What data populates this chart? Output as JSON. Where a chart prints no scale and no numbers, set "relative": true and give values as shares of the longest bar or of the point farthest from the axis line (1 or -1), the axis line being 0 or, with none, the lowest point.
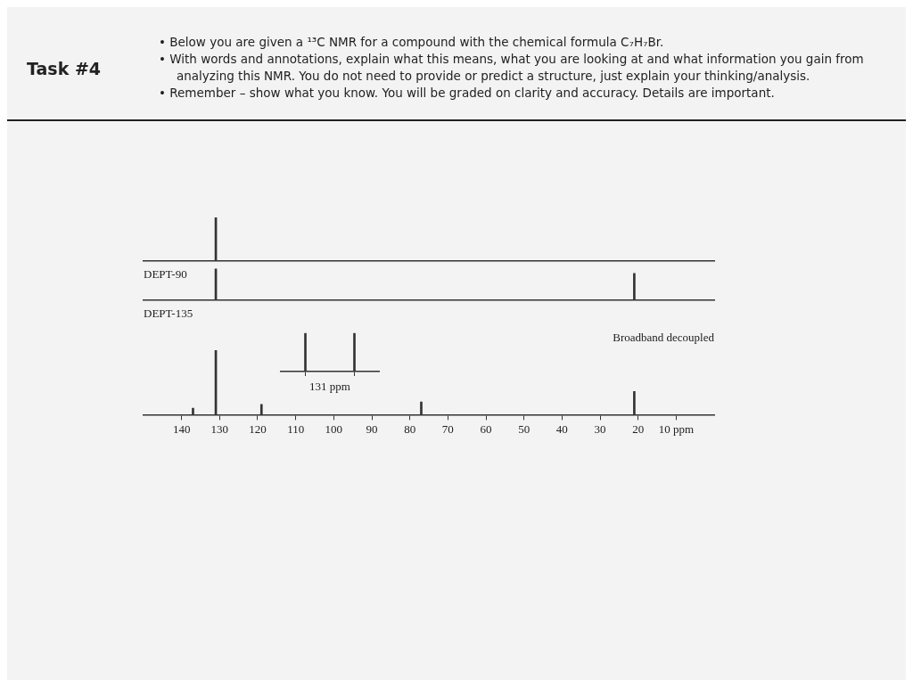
{
  "chart_data": [
    {
      "type": "bar",
      "title": "DEPT-90",
      "x": [
        131
      ],
      "values": [
        1
      ],
      "relative": true,
      "xlim": [
        150,
        0
      ],
      "tick_labels": false,
      "grid": false,
      "color": "#333333",
      "annotations": [
        "Task #4",
        "• Below you are given a ¹³C NMR for a compound with the chemical formula C₇H₇Br.",
        "• With words and annotations, explain what this means, what you are looking at and what information you gain from analyzing this NMR. You do not need to provide or predict a structure, just explain your thinking/analysis.",
        "• Remember – show what you know. You will be graded on clarity and accuracy. Details are important."
      ]
    },
    {
      "type": "bar",
      "title": "DEPT-135",
      "x": [
        131,
        21
      ],
      "values": [
        1,
        0.85
      ],
      "relative": true,
      "xlim": [
        150,
        0
      ],
      "tick_labels": false,
      "grid": false,
      "color": "#333333"
    },
    {
      "type": "bar",
      "title": "Broadband decoupled",
      "x": [
        137,
        131,
        119,
        77,
        21
      ],
      "values": [
        0.1,
        1,
        0.16,
        0.2,
        0.36
      ],
      "relative": true,
      "xlim": [
        150,
        0
      ],
      "xticks": [
        140,
        130,
        120,
        110,
        100,
        90,
        80,
        70,
        60,
        50,
        40,
        30,
        20,
        {
          "value": 10,
          "label": "10 ppm"
        }
      ],
      "grid": false,
      "color": "#333333"
    },
    {
      "type": "bar",
      "categories": [
        null,
        null
      ],
      "values": [
        1,
        1
      ],
      "relative": true,
      "tick_labels": false,
      "grid": false,
      "color": "#333333",
      "annotations": [
        "131 ppm"
      ]
    }
  ]
}
